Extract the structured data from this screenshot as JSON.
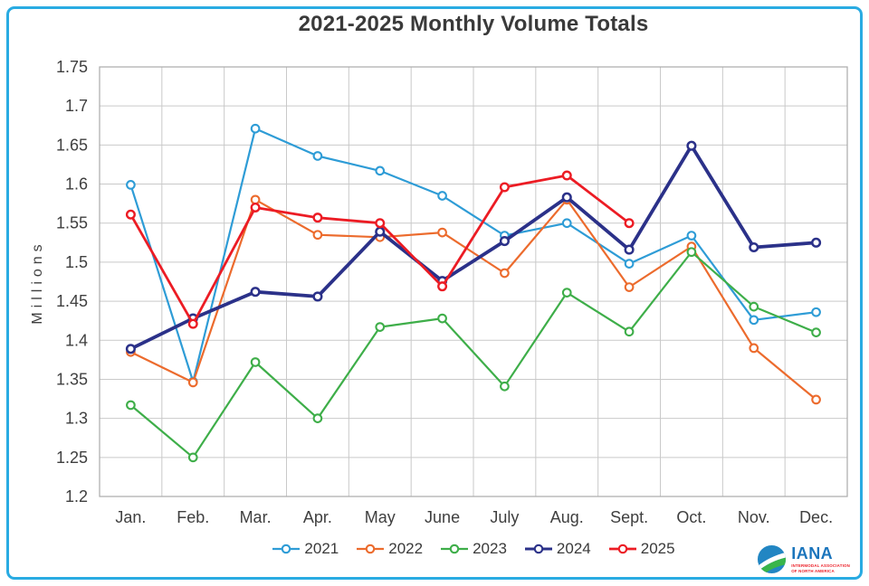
{
  "frame": {
    "border_color": "#29ABE2",
    "background": "#FFFFFF"
  },
  "chart_data": {
    "type": "line",
    "title": "2021-2025 Monthly Volume Totals",
    "xlabel": "",
    "ylabel": "Millions",
    "categories": [
      "Jan.",
      "Feb.",
      "Mar.",
      "Apr.",
      "May",
      "June",
      "July",
      "Aug.",
      "Sept.",
      "Oct.",
      "Nov.",
      "Dec."
    ],
    "ylim": [
      1.2,
      1.75
    ],
    "ytick_values": [
      1.75,
      1.7,
      1.65,
      1.6,
      1.55,
      1.5,
      1.45,
      1.4,
      1.35,
      1.3,
      1.25,
      1.2
    ],
    "ytick_labels": [
      "1.75",
      "1.7",
      "1.65",
      "1.6",
      "1.55",
      "1.5",
      "1.45",
      "1.4",
      "1.35",
      "1.3",
      "1.25",
      "1.2"
    ],
    "grid": true,
    "grid_color": "#C9C9C9",
    "axis_text_color": "#3F3F3F",
    "legend_position": "bottom",
    "series": [
      {
        "name": "2021",
        "color": "#2E9CD6",
        "line_width": 2.2,
        "marker_stroke": 2.1,
        "values": [
          1.599,
          1.347,
          1.671,
          1.636,
          1.617,
          1.585,
          1.534,
          1.55,
          1.498,
          1.534,
          1.426,
          1.436
        ]
      },
      {
        "name": "2022",
        "color": "#EC6B2D",
        "line_width": 2.2,
        "marker_stroke": 2.1,
        "values": [
          1.385,
          1.346,
          1.58,
          1.535,
          1.532,
          1.538,
          1.486,
          1.58,
          1.468,
          1.52,
          1.39,
          1.324
        ]
      },
      {
        "name": "2023",
        "color": "#3EAE49",
        "line_width": 2.2,
        "marker_stroke": 2.1,
        "values": [
          1.317,
          1.25,
          1.372,
          1.3,
          1.417,
          1.428,
          1.341,
          1.461,
          1.411,
          1.513,
          1.443,
          1.41
        ]
      },
      {
        "name": "2024",
        "color": "#2B3189",
        "line_width": 3.8,
        "marker_stroke": 2.5,
        "values": [
          1.389,
          1.428,
          1.462,
          1.456,
          1.539,
          1.476,
          1.527,
          1.583,
          1.516,
          1.649,
          1.519,
          1.525
        ]
      },
      {
        "name": "2025",
        "color": "#EC1C24",
        "line_width": 2.8,
        "marker_stroke": 2.4,
        "values": [
          1.561,
          1.421,
          1.57,
          1.557,
          1.55,
          1.469,
          1.596,
          1.611,
          1.55,
          null,
          null,
          null
        ]
      }
    ]
  },
  "logo": {
    "name": "IANA",
    "subline1": "INTERMODAL ASSOCIATION",
    "subline2": "OF NORTH AMERICA",
    "name_color": "#1B75BC",
    "sub_color": "#EC1C24",
    "globe_blue": "#2286C3",
    "globe_green": "#39B54A"
  }
}
